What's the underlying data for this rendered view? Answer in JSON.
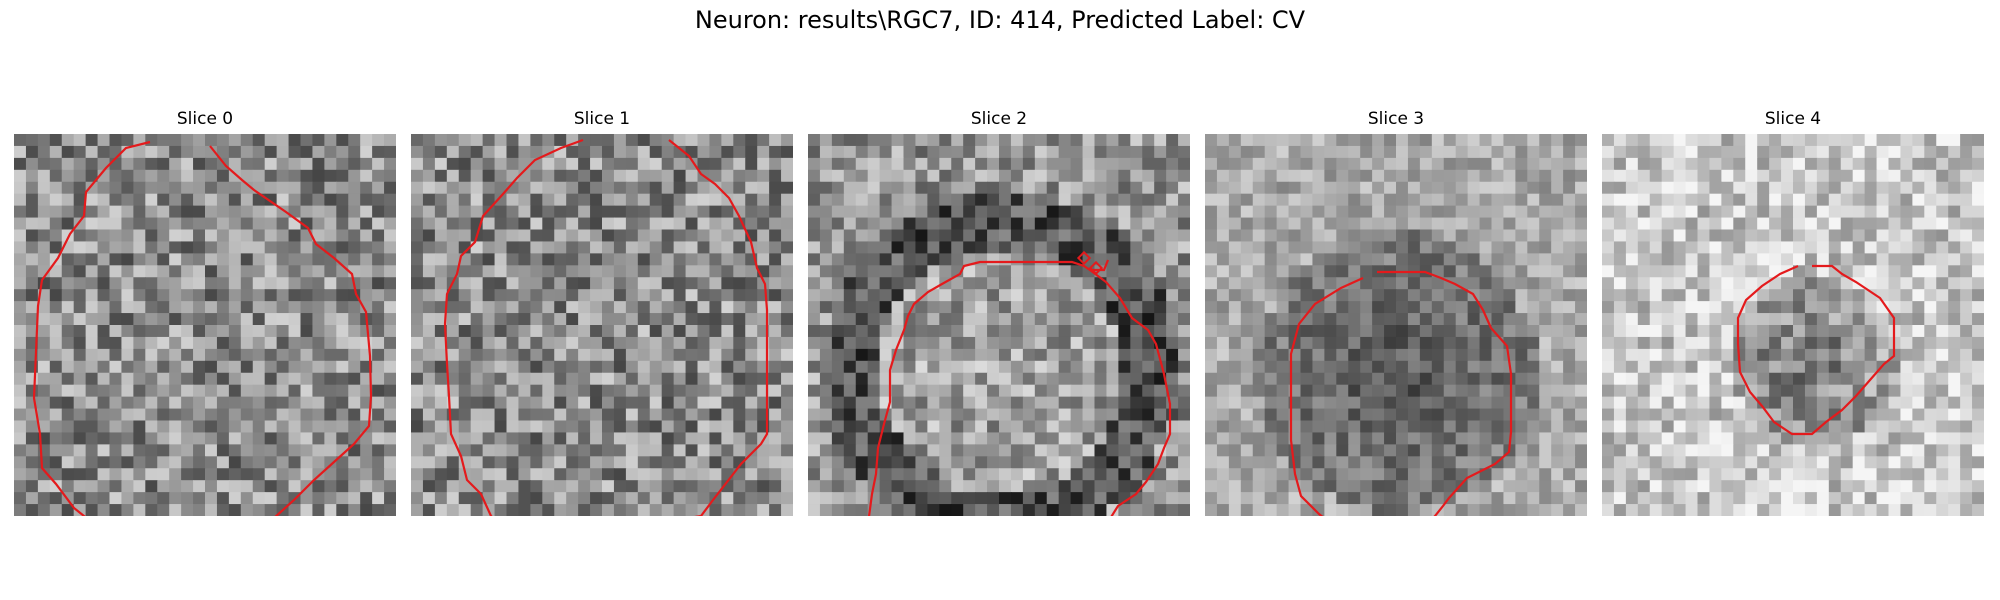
{
  "figure": {
    "title": "Neuron: results\\RGC7, ID: 414, Predicted Label: CV"
  },
  "panels": [
    {
      "title": "Slice 0",
      "description": "noisy grayscale EM patch; red contour outlines a large round cell body"
    },
    {
      "title": "Slice 1",
      "description": "noisy grayscale EM patch; red contour outlines a large round cell body"
    },
    {
      "title": "Slice 2",
      "description": "grayscale EM patch with darker membrane ring; red contour outlines the body"
    },
    {
      "title": "Slice 3",
      "description": "smoother grayscale EM patch; red contour outlines a smaller octagonal body"
    },
    {
      "title": "Slice 4",
      "description": "bright grayscale patch with dark central blob; red contour outlines small octagon"
    }
  ],
  "colors": {
    "contour": "#e41a1c",
    "background": "#ffffff"
  }
}
